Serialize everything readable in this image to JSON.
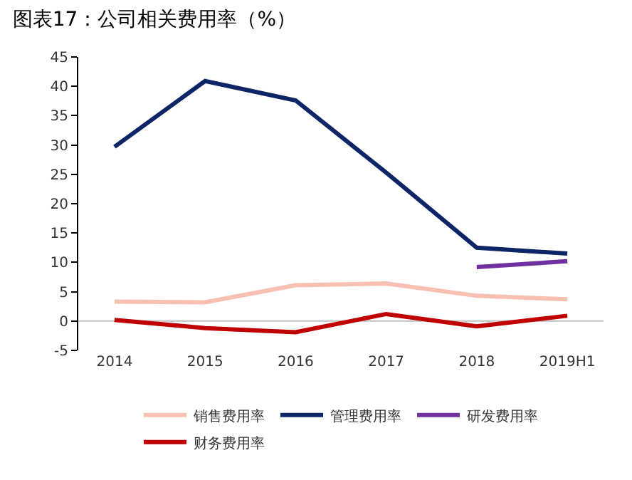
{
  "chart_data": {
    "type": "line",
    "title": "图表17：公司相关费用率（%）",
    "categories": [
      "2014",
      "2015",
      "2016",
      "2017",
      "2018",
      "2019H1"
    ],
    "series": [
      {
        "name": "销售费用率",
        "color": "#f8c0b0",
        "values": [
          3.3,
          3.2,
          6.1,
          6.4,
          4.3,
          3.7
        ]
      },
      {
        "name": "管理费用率",
        "color": "#0c2566",
        "values": [
          29.7,
          40.9,
          37.6,
          25.3,
          12.5,
          11.5
        ]
      },
      {
        "name": "研发费用率",
        "color": "#7030a0",
        "values": [
          null,
          null,
          null,
          null,
          9.2,
          10.2
        ]
      },
      {
        "name": "财务费用率",
        "color": "#c00000",
        "values": [
          0.2,
          -1.2,
          -1.9,
          1.2,
          -0.9,
          0.9
        ]
      }
    ],
    "ylim": [
      -5,
      45
    ],
    "yticks": [
      -5,
      0,
      5,
      10,
      15,
      20,
      25,
      30,
      35,
      40,
      45
    ],
    "grid": false,
    "legend": "bottom",
    "marker": "none",
    "line_style": "solid"
  }
}
